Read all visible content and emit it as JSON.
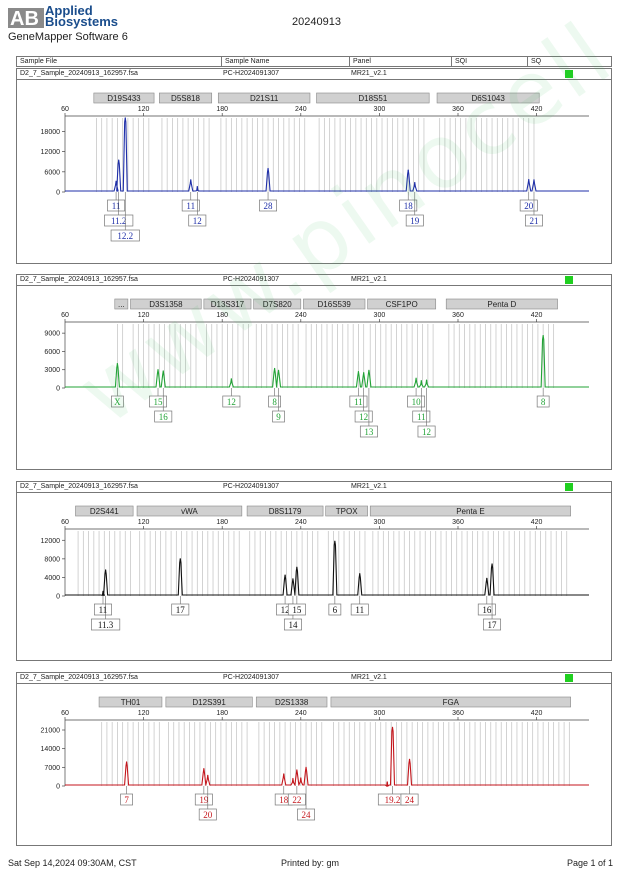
{
  "header": {
    "logo_mark": "AB",
    "brand_line1": "Applied",
    "brand_line2": "Biosystems",
    "software": "GeneMapper Software 6",
    "date": "20240913",
    "columns": [
      "Sample File",
      "Sample Name",
      "Panel",
      "SQI",
      "SQ"
    ]
  },
  "footer": {
    "timestamp": "Sat Sep 14,2024 09:30AM, CST",
    "printed_by": "Printed by: gm",
    "page": "Page 1 of 1"
  },
  "watermark": "www.pinocell.com.cn",
  "colors": {
    "blue": "#1f2fa8",
    "green": "#22a336",
    "black": "#111111",
    "red": "#c4161c",
    "bin": "#c8c8c8",
    "locus_box": "#d0d0d0",
    "status_ok": "#1fcf1f"
  },
  "chart_data": [
    {
      "type": "line",
      "sample_file": "D2_7_Sample_20240913_162957.fsa",
      "sample_name": "PC-H2024091307",
      "panel": "MR21_v2.1",
      "color": "blue",
      "xlim": [
        60,
        460
      ],
      "x_ticks": [
        60,
        120,
        180,
        240,
        300,
        360,
        420
      ],
      "y_ticks": [
        0,
        6000,
        12000,
        18000
      ],
      "ylim": [
        0,
        22000
      ],
      "loci": [
        {
          "name": "D19S433",
          "start": 82,
          "end": 128
        },
        {
          "name": "D5S818",
          "start": 132,
          "end": 172
        },
        {
          "name": "D21S11",
          "start": 177,
          "end": 247
        },
        {
          "name": "D18S51",
          "start": 252,
          "end": 338
        },
        {
          "name": "D6S1043",
          "start": 344,
          "end": 422
        }
      ],
      "peaks": [
        {
          "x": 99,
          "y": 3200
        },
        {
          "x": 101,
          "y": 9500
        },
        {
          "x": 106,
          "y": 22000
        },
        {
          "x": 156,
          "y": 3600
        },
        {
          "x": 161,
          "y": 1600
        },
        {
          "x": 215,
          "y": 7000
        },
        {
          "x": 322,
          "y": 6500
        },
        {
          "x": 327,
          "y": 2800
        },
        {
          "x": 414,
          "y": 3700
        },
        {
          "x": 418,
          "y": 3600
        }
      ],
      "alleles": [
        {
          "label": "11",
          "x": 99,
          "row": 0
        },
        {
          "label": "11.2",
          "x": 101,
          "row": 1
        },
        {
          "label": "12.2",
          "x": 106,
          "row": 2
        },
        {
          "label": "11",
          "x": 156,
          "row": 0
        },
        {
          "label": "12",
          "x": 161,
          "row": 1
        },
        {
          "label": "28",
          "x": 215,
          "row": 0
        },
        {
          "label": "18",
          "x": 322,
          "row": 0
        },
        {
          "label": "19",
          "x": 327,
          "row": 1
        },
        {
          "label": "20",
          "x": 414,
          "row": 0
        },
        {
          "label": "21",
          "x": 418,
          "row": 1
        }
      ]
    },
    {
      "type": "line",
      "sample_file": "D2_7_Sample_20240913_162957.fsa",
      "sample_name": "PC-H2024091307",
      "panel": "MR21_v2.1",
      "color": "green",
      "xlim": [
        60,
        460
      ],
      "x_ticks": [
        60,
        120,
        180,
        240,
        300,
        360,
        420
      ],
      "y_ticks": [
        0,
        3000,
        6000,
        9000
      ],
      "ylim": [
        0,
        10500
      ],
      "loci": [
        {
          "name": "...",
          "start": 98,
          "end": 108
        },
        {
          "name": "D3S1358",
          "start": 110,
          "end": 164
        },
        {
          "name": "D13S317",
          "start": 166,
          "end": 202
        },
        {
          "name": "D7S820",
          "start": 204,
          "end": 240
        },
        {
          "name": "D16S539",
          "start": 242,
          "end": 289
        },
        {
          "name": "CSF1PO",
          "start": 291,
          "end": 343
        },
        {
          "name": "Penta D",
          "start": 351,
          "end": 436
        }
      ],
      "peaks": [
        {
          "x": 100,
          "y": 4000
        },
        {
          "x": 131,
          "y": 3000
        },
        {
          "x": 135,
          "y": 2800
        },
        {
          "x": 187,
          "y": 1500
        },
        {
          "x": 220,
          "y": 3200
        },
        {
          "x": 223,
          "y": 2900
        },
        {
          "x": 284,
          "y": 2700
        },
        {
          "x": 288,
          "y": 2500
        },
        {
          "x": 292,
          "y": 2900
        },
        {
          "x": 328,
          "y": 1600
        },
        {
          "x": 332,
          "y": 1200
        },
        {
          "x": 336,
          "y": 1300
        },
        {
          "x": 425,
          "y": 8600
        }
      ],
      "alleles": [
        {
          "label": "X",
          "x": 100,
          "row": 0
        },
        {
          "label": "15",
          "x": 131,
          "row": 0
        },
        {
          "label": "16",
          "x": 135,
          "row": 1
        },
        {
          "label": "12",
          "x": 187,
          "row": 0
        },
        {
          "label": "8",
          "x": 220,
          "row": 0
        },
        {
          "label": "9",
          "x": 223,
          "row": 1
        },
        {
          "label": "11",
          "x": 284,
          "row": 0
        },
        {
          "label": "12",
          "x": 288,
          "row": 1
        },
        {
          "label": "13",
          "x": 292,
          "row": 2
        },
        {
          "label": "10",
          "x": 328,
          "row": 0
        },
        {
          "label": "11",
          "x": 332,
          "row": 1
        },
        {
          "label": "12",
          "x": 336,
          "row": 2
        },
        {
          "label": "8",
          "x": 425,
          "row": 0
        }
      ]
    },
    {
      "type": "line",
      "sample_file": "D2_7_Sample_20240913_162957.fsa",
      "sample_name": "PC-H2024091307",
      "panel": "MR21_v2.1",
      "color": "black",
      "xlim": [
        60,
        460
      ],
      "x_ticks": [
        60,
        120,
        180,
        240,
        300,
        360,
        420
      ],
      "y_ticks": [
        0,
        4000,
        8000,
        12000
      ],
      "ylim": [
        0,
        14000
      ],
      "loci": [
        {
          "name": "D2S441",
          "start": 68,
          "end": 112
        },
        {
          "name": "vWA",
          "start": 115,
          "end": 195
        },
        {
          "name": "D8S1179",
          "start": 199,
          "end": 257
        },
        {
          "name": "TPOX",
          "start": 259,
          "end": 291
        },
        {
          "name": "Penta E",
          "start": 293,
          "end": 446
        }
      ],
      "peaks": [
        {
          "x": 89,
          "y": 1000
        },
        {
          "x": 91,
          "y": 5600
        },
        {
          "x": 148,
          "y": 8000
        },
        {
          "x": 228,
          "y": 4500
        },
        {
          "x": 234,
          "y": 3700
        },
        {
          "x": 237,
          "y": 6200
        },
        {
          "x": 266,
          "y": 11800
        },
        {
          "x": 285,
          "y": 4800
        },
        {
          "x": 382,
          "y": 3800
        },
        {
          "x": 386,
          "y": 6900
        }
      ],
      "alleles": [
        {
          "label": "11",
          "x": 89,
          "row": 0
        },
        {
          "label": "11.3",
          "x": 91,
          "row": 1
        },
        {
          "label": "17",
          "x": 148,
          "row": 0
        },
        {
          "label": "12",
          "x": 228,
          "row": 0
        },
        {
          "label": "14",
          "x": 234,
          "row": 1
        },
        {
          "label": "15",
          "x": 237,
          "row": 0
        },
        {
          "label": "6",
          "x": 266,
          "row": 0
        },
        {
          "label": "11",
          "x": 285,
          "row": 0
        },
        {
          "label": "16",
          "x": 382,
          "row": 0
        },
        {
          "label": "17",
          "x": 386,
          "row": 1
        }
      ]
    },
    {
      "type": "line",
      "sample_file": "D2_7_Sample_20240913_162957.fsa",
      "sample_name": "PC-H2024091307",
      "panel": "MR21_v2.1",
      "color": "red",
      "xlim": [
        60,
        460
      ],
      "x_ticks": [
        60,
        120,
        180,
        240,
        300,
        360,
        420
      ],
      "y_ticks": [
        0,
        7000,
        14000,
        21000
      ],
      "ylim": [
        0,
        24000
      ],
      "loci": [
        {
          "name": "TH01",
          "start": 86,
          "end": 134
        },
        {
          "name": "D12S391",
          "start": 137,
          "end": 203
        },
        {
          "name": "D2S1338",
          "start": 206,
          "end": 260
        },
        {
          "name": "FGA",
          "start": 263,
          "end": 446
        }
      ],
      "peaks": [
        {
          "x": 107,
          "y": 9000
        },
        {
          "x": 166,
          "y": 6500
        },
        {
          "x": 169,
          "y": 4000
        },
        {
          "x": 227,
          "y": 4500
        },
        {
          "x": 234,
          "y": 2800
        },
        {
          "x": 237,
          "y": 6000
        },
        {
          "x": 240,
          "y": 3000
        },
        {
          "x": 244,
          "y": 7000
        },
        {
          "x": 306,
          "y": 1500
        },
        {
          "x": 310,
          "y": 22000
        },
        {
          "x": 323,
          "y": 10000
        }
      ],
      "alleles": [
        {
          "label": "7",
          "x": 107,
          "row": 0
        },
        {
          "label": "19",
          "x": 166,
          "row": 0
        },
        {
          "label": "20",
          "x": 169,
          "row": 1
        },
        {
          "label": "18",
          "x": 227,
          "row": 0
        },
        {
          "label": "22",
          "x": 237,
          "row": 0
        },
        {
          "label": "24",
          "x": 244,
          "row": 1
        },
        {
          "label": "19.2",
          "x": 310,
          "row": 0
        },
        {
          "label": "24",
          "x": 323,
          "row": 0
        }
      ]
    }
  ]
}
